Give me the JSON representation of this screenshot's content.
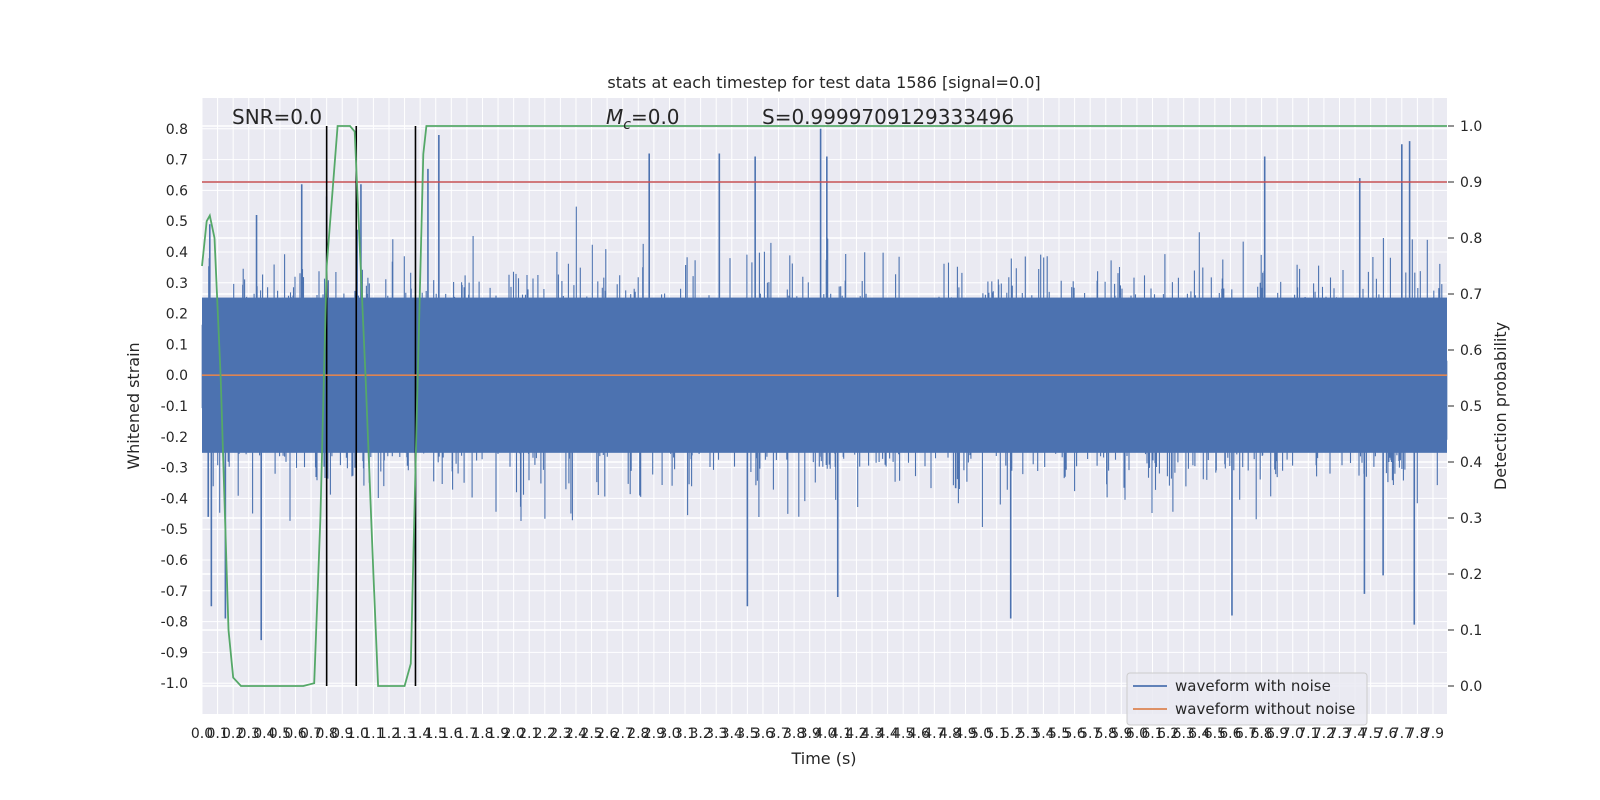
{
  "chart_data": {
    "type": "line",
    "title": "stats at each timestep for test data 1586 [signal=0.0]",
    "xlabel": "Time (s)",
    "ylabel_left": "Whitened strain",
    "ylabel_right": "Detection probability",
    "xlim": [
      0.0,
      7.99
    ],
    "ylim_left": [
      -1.1,
      0.9
    ],
    "ylim_right": [
      -0.05,
      1.05
    ],
    "x_ticks": [
      "0.0",
      "0.1",
      "0.2",
      "0.3",
      "0.4",
      "0.5",
      "0.6",
      "0.7",
      "0.8",
      "0.9",
      "1.0",
      "1.1",
      "1.2",
      "1.3",
      "1.4",
      "1.5",
      "1.6",
      "1.7",
      "1.8",
      "1.9",
      "2.0",
      "2.1",
      "2.2",
      "2.3",
      "2.4",
      "2.5",
      "2.6",
      "2.7",
      "2.8",
      "2.9",
      "3.0",
      "3.1",
      "3.2",
      "3.3",
      "3.4",
      "3.5",
      "3.6",
      "3.7",
      "3.8",
      "3.9",
      "4.0",
      "4.1",
      "4.2",
      "4.3",
      "4.4",
      "4.5",
      "4.6",
      "4.7",
      "4.8",
      "4.9",
      "5.0",
      "5.1",
      "5.2",
      "5.3",
      "5.4",
      "5.5",
      "5.6",
      "5.7",
      "5.8",
      "5.9",
      "6.0",
      "6.1",
      "6.2",
      "6.3",
      "6.4",
      "6.5",
      "6.6",
      "6.7",
      "6.8",
      "6.9",
      "7.0",
      "7.1",
      "7.2",
      "7.3",
      "7.4",
      "7.5",
      "7.6",
      "7.7",
      "7.8",
      "7.9"
    ],
    "y_ticks_left": [
      "0.8",
      "0.7",
      "0.6",
      "0.5",
      "0.4",
      "0.3",
      "0.2",
      "0.1",
      "0.0",
      "-0.1",
      "-0.2",
      "-0.3",
      "-0.4",
      "-0.5",
      "-0.6",
      "-0.7",
      "-0.8",
      "-0.9",
      "-1.0"
    ],
    "y_ticks_right": [
      "1.0",
      "0.9",
      "0.8",
      "0.7",
      "0.6",
      "0.5",
      "0.4",
      "0.3",
      "0.2",
      "0.1",
      "0.0"
    ],
    "annotations": {
      "snr": "SNR=0.0",
      "mc": "=0.0",
      "mc_symbol": "M",
      "mc_sub": "c",
      "s": "S=0.9999709129333496"
    },
    "threshold_right": 0.9,
    "vertical_markers_s": [
      0.8,
      0.99,
      1.37
    ],
    "series": [
      {
        "name": "waveform with noise",
        "color": "#4c72b0",
        "kind": "noise",
        "envelope_typical": 0.28,
        "peaks": [
          {
            "x": 0.05,
            "y": 0.49
          },
          {
            "x": 0.04,
            "y": -0.46
          },
          {
            "x": 0.06,
            "y": -0.75
          },
          {
            "x": 0.15,
            "y": -0.79
          },
          {
            "x": 0.38,
            "y": -0.86
          },
          {
            "x": 0.35,
            "y": 0.52
          },
          {
            "x": 0.64,
            "y": 0.62
          },
          {
            "x": 0.8,
            "y": 0.58
          },
          {
            "x": 1.02,
            "y": 0.62
          },
          {
            "x": 1.37,
            "y": -0.8
          },
          {
            "x": 1.45,
            "y": 0.67
          },
          {
            "x": 1.52,
            "y": 0.78
          },
          {
            "x": 2.87,
            "y": 0.72
          },
          {
            "x": 3.32,
            "y": 0.72
          },
          {
            "x": 3.55,
            "y": 0.71
          },
          {
            "x": 3.97,
            "y": 0.8
          },
          {
            "x": 4.01,
            "y": 0.71
          },
          {
            "x": 4.08,
            "y": -0.72
          },
          {
            "x": 3.5,
            "y": -0.75
          },
          {
            "x": 5.19,
            "y": -0.79
          },
          {
            "x": 6.61,
            "y": -0.78
          },
          {
            "x": 6.82,
            "y": 0.71
          },
          {
            "x": 7.43,
            "y": 0.64
          },
          {
            "x": 7.46,
            "y": -0.71
          },
          {
            "x": 7.7,
            "y": 0.75
          },
          {
            "x": 7.75,
            "y": 0.76
          },
          {
            "x": 7.78,
            "y": -0.81
          },
          {
            "x": 7.58,
            "y": -0.65
          }
        ]
      },
      {
        "name": "waveform without noise",
        "color": "#dd8452",
        "x": [
          0.0,
          7.99
        ],
        "y": [
          0.0,
          0.0
        ]
      },
      {
        "name": "detection probability",
        "color": "#55a868",
        "axis": "right",
        "x": [
          0.0,
          0.03,
          0.05,
          0.08,
          0.12,
          0.17,
          0.2,
          0.25,
          0.3,
          0.5,
          0.65,
          0.72,
          0.76,
          0.8,
          0.87,
          0.95,
          0.98,
          1.05,
          1.1,
          1.13,
          1.16,
          1.23,
          1.3,
          1.34,
          1.38,
          1.42,
          1.44,
          1.5,
          3.0,
          5.0,
          7.99
        ],
        "y": [
          0.75,
          0.83,
          0.84,
          0.8,
          0.55,
          0.1,
          0.015,
          0.0,
          0.0,
          0.0,
          0.0,
          0.005,
          0.3,
          0.75,
          1.0,
          1.0,
          0.99,
          0.55,
          0.2,
          0.0,
          0.0,
          0.0,
          0.0,
          0.04,
          0.5,
          0.95,
          1.0,
          1.0,
          1.0,
          1.0,
          1.0
        ]
      }
    ],
    "legend": {
      "placement": "lower-right",
      "entries": [
        "waveform with noise",
        "waveform without noise"
      ]
    },
    "colors": {
      "background": "#eaeaf2",
      "grid": "#ffffff",
      "threshold": "#c44e52",
      "marker": "#000000"
    },
    "grid": true
  }
}
